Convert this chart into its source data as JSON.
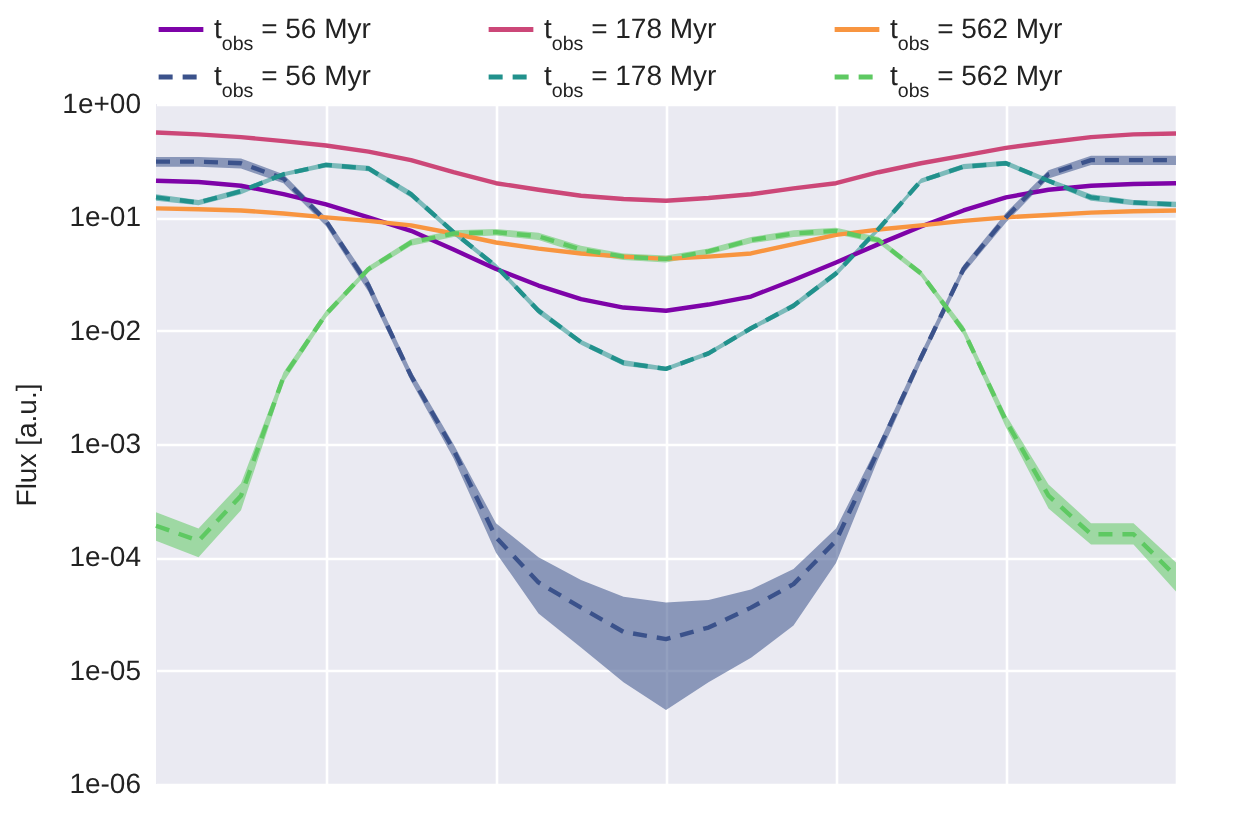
{
  "chart_data": {
    "type": "line",
    "ylabel": "Flux [a.u.]",
    "log": true,
    "grid": true,
    "legend": "top",
    "tick_labels": "y",
    "categories": [
      null,
      null,
      null,
      null,
      null,
      null,
      null,
      null,
      null,
      null,
      null,
      null,
      null,
      null,
      null,
      null,
      null,
      null,
      null,
      null,
      null,
      null,
      null,
      null,
      null
    ],
    "ylim": [
      1e-06,
      1
    ],
    "yticks": [
      {
        "value": 1e-06,
        "label": "1e-06"
      },
      {
        "value": 1e-05,
        "label": "1e-05"
      },
      {
        "value": 0.0001,
        "label": "1e-04"
      },
      {
        "value": 0.001,
        "label": "1e-03"
      },
      {
        "value": 0.01,
        "label": "1e-02"
      },
      {
        "value": 0.1,
        "label": "1e-01"
      },
      {
        "value": 1,
        "label": "1e+00"
      }
    ],
    "series": [
      {
        "name": "t$_{obs}$ = 56 Myr",
        "color": "#7e03a8",
        "line_style": "solid",
        "values": [
          0.21,
          0.205,
          0.19,
          0.16,
          0.13,
          0.1,
          0.076,
          0.052,
          0.035,
          0.025,
          0.019,
          0.016,
          0.015,
          0.017,
          0.02,
          0.028,
          0.04,
          0.058,
          0.083,
          0.115,
          0.15,
          0.175,
          0.19,
          0.197,
          0.2
        ]
      },
      {
        "name": "t$_{obs}$ = 178 Myr",
        "color": "#cc4778",
        "line_style": "solid",
        "values": [
          0.56,
          0.54,
          0.51,
          0.47,
          0.43,
          0.38,
          0.32,
          0.25,
          0.2,
          0.175,
          0.155,
          0.145,
          0.14,
          0.148,
          0.16,
          0.18,
          0.2,
          0.25,
          0.3,
          0.35,
          0.41,
          0.46,
          0.51,
          0.54,
          0.55
        ]
      },
      {
        "name": "t$_{obs}$ = 562 Myr",
        "color": "#f89540",
        "line_style": "solid",
        "values": [
          0.12,
          0.118,
          0.115,
          0.108,
          0.1,
          0.093,
          0.085,
          0.072,
          0.06,
          0.053,
          0.048,
          0.045,
          0.043,
          0.045,
          0.048,
          0.058,
          0.07,
          0.078,
          0.085,
          0.093,
          0.1,
          0.105,
          0.11,
          0.113,
          0.115
        ]
      },
      {
        "name": "t$_{obs}$ = 56 Myr",
        "color": "#3b528b",
        "line_style": "dashed",
        "values": [
          0.31,
          0.31,
          0.3,
          0.22,
          0.093,
          0.025,
          0.004,
          0.00089,
          0.00015,
          6e-05,
          3.6e-05,
          2.2e-05,
          1.9e-05,
          2.4e-05,
          3.6e-05,
          5.8e-05,
          0.00014,
          0.00089,
          0.0058,
          0.035,
          0.1,
          0.24,
          0.32,
          0.32,
          0.32
        ],
        "lower": [
          0.28,
          0.28,
          0.27,
          0.2,
          0.084,
          0.022,
          0.0036,
          0.00075,
          0.00011,
          3.2e-05,
          1.6e-05,
          7.9e-06,
          4.5e-06,
          7.9e-06,
          1.3e-05,
          2.5e-05,
          8.9e-05,
          0.00075,
          0.0052,
          0.032,
          0.09,
          0.22,
          0.29,
          0.29,
          0.29
        ],
        "upper": [
          0.34,
          0.34,
          0.33,
          0.24,
          0.1,
          0.028,
          0.0044,
          0.001,
          0.0002,
          0.0001,
          6.3e-05,
          4.5e-05,
          4e-05,
          4.2e-05,
          5.2e-05,
          7.9e-05,
          0.00018,
          0.001,
          0.0064,
          0.038,
          0.11,
          0.26,
          0.35,
          0.35,
          0.35
        ]
      },
      {
        "name": "t$_{obs}$ = 178 Myr",
        "color": "#21918c",
        "line_style": "dashed",
        "values": [
          0.15,
          0.135,
          0.17,
          0.24,
          0.29,
          0.27,
          0.16,
          0.074,
          0.037,
          0.015,
          0.0079,
          0.0052,
          0.0046,
          0.0063,
          0.0105,
          0.0166,
          0.032,
          0.079,
          0.21,
          0.28,
          0.3,
          0.21,
          0.15,
          0.135,
          0.13
        ],
        "lower": [
          0.14,
          0.128,
          0.16,
          0.23,
          0.275,
          0.255,
          0.15,
          0.07,
          0.035,
          0.014,
          0.0075,
          0.0049,
          0.0044,
          0.006,
          0.01,
          0.0157,
          0.03,
          0.075,
          0.2,
          0.265,
          0.285,
          0.2,
          0.14,
          0.128,
          0.123
        ],
        "upper": [
          0.16,
          0.142,
          0.18,
          0.25,
          0.305,
          0.285,
          0.17,
          0.078,
          0.039,
          0.016,
          0.0083,
          0.0055,
          0.0048,
          0.0066,
          0.011,
          0.0175,
          0.034,
          0.083,
          0.22,
          0.295,
          0.315,
          0.22,
          0.16,
          0.142,
          0.137
        ]
      },
      {
        "name": "t$_{obs}$ = 562 Myr",
        "color": "#5ec962",
        "line_style": "dashed",
        "values": [
          0.00019,
          0.00014,
          0.00035,
          0.0039,
          0.014,
          0.035,
          0.06,
          0.072,
          0.074,
          0.068,
          0.052,
          0.045,
          0.043,
          0.05,
          0.063,
          0.072,
          0.076,
          0.063,
          0.032,
          0.01,
          0.0016,
          0.00035,
          0.00016,
          0.00016,
          6.8e-05
        ],
        "lower": [
          0.00014,
          0.0001,
          0.00026,
          0.0035,
          0.013,
          0.033,
          0.056,
          0.067,
          0.069,
          0.063,
          0.048,
          0.042,
          0.04,
          0.047,
          0.059,
          0.067,
          0.071,
          0.059,
          0.03,
          0.0092,
          0.0014,
          0.00027,
          0.00013,
          0.00013,
          5e-05
        ],
        "upper": [
          0.00025,
          0.00018,
          0.00045,
          0.0043,
          0.015,
          0.037,
          0.064,
          0.077,
          0.079,
          0.073,
          0.056,
          0.048,
          0.046,
          0.053,
          0.067,
          0.077,
          0.081,
          0.067,
          0.034,
          0.011,
          0.0018,
          0.00044,
          0.0002,
          0.0002,
          9e-05
        ]
      }
    ]
  }
}
